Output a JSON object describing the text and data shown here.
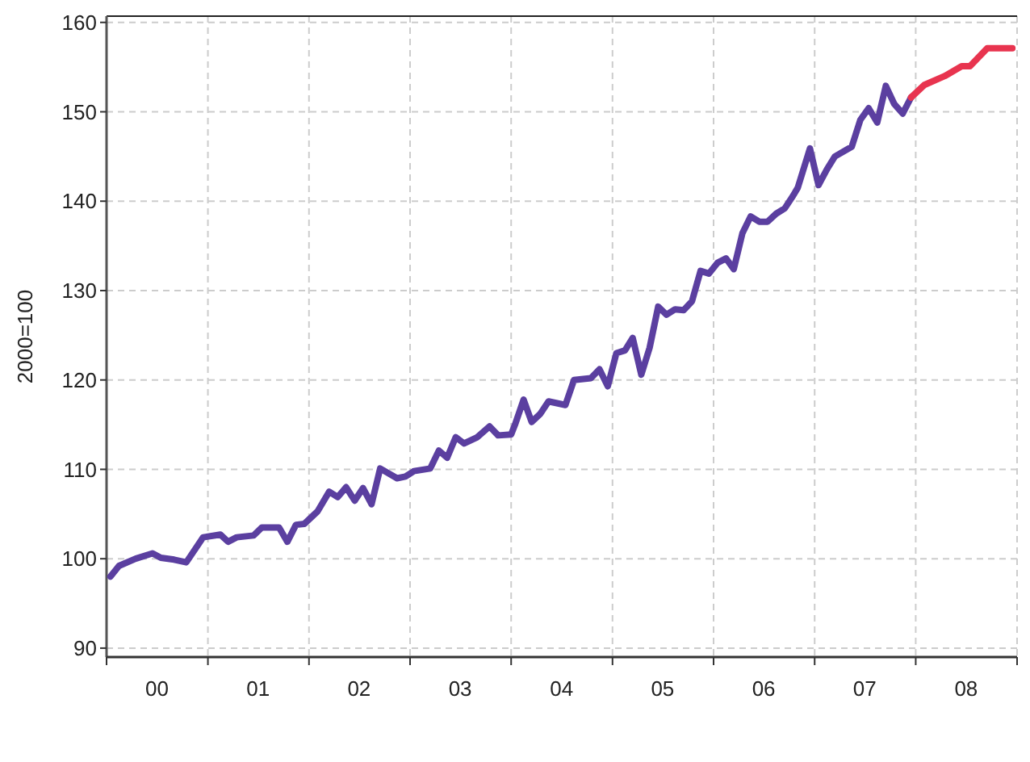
{
  "chart_data": {
    "type": "line",
    "ylabel": "2000=100",
    "xlim": [
      "2000-01-01",
      "2009-01-01"
    ],
    "ylim": [
      89,
      160.7
    ],
    "xticks": [
      {
        "value": "2000-01-01",
        "label": null
      },
      {
        "value": "2000-07-01",
        "label": "00"
      },
      {
        "value": "2001-01-01",
        "label": null
      },
      {
        "value": "2001-07-01",
        "label": "01"
      },
      {
        "value": "2002-01-01",
        "label": null
      },
      {
        "value": "2002-07-01",
        "label": "02"
      },
      {
        "value": "2003-01-01",
        "label": null
      },
      {
        "value": "2003-07-01",
        "label": "03"
      },
      {
        "value": "2004-01-01",
        "label": null
      },
      {
        "value": "2004-07-01",
        "label": "04"
      },
      {
        "value": "2005-01-01",
        "label": null
      },
      {
        "value": "2005-07-01",
        "label": "05"
      },
      {
        "value": "2006-01-01",
        "label": null
      },
      {
        "value": "2006-07-01",
        "label": "06"
      },
      {
        "value": "2007-01-01",
        "label": null
      },
      {
        "value": "2007-07-01",
        "label": "07"
      },
      {
        "value": "2008-01-01",
        "label": null
      },
      {
        "value": "2008-07-01",
        "label": "08"
      },
      {
        "value": "2009-01-01",
        "label": null
      }
    ],
    "yticks": [
      90,
      100,
      110,
      120,
      130,
      140,
      150,
      160
    ],
    "grid": true,
    "line_style": "solid",
    "marker": "none",
    "series": [
      {
        "color": "#5b3fa0",
        "x": [
          "2000-01-15",
          "2000-02-15",
          "2000-04-15",
          "2000-06-15",
          "2000-07-15",
          "2000-09-01",
          "2000-10-15",
          "2000-12-15",
          "2001-02-15",
          "2001-03-15",
          "2001-04-15",
          "2001-06-15",
          "2001-07-15",
          "2001-09-15",
          "2001-10-15",
          "2001-11-15",
          "2001-12-15",
          "2002-02-01",
          "2002-03-15",
          "2002-04-15",
          "2002-05-15",
          "2002-06-15",
          "2002-07-15",
          "2002-08-15",
          "2002-09-15",
          "2002-11-15",
          "2002-12-15",
          "2003-01-15",
          "2003-03-15",
          "2003-04-15",
          "2003-05-15",
          "2003-06-15",
          "2003-07-15",
          "2003-09-01",
          "2003-10-15",
          "2003-11-15",
          "2004-01-01",
          "2004-01-15",
          "2004-02-15",
          "2004-03-15",
          "2004-04-15",
          "2004-05-15",
          "2004-07-15",
          "2004-08-15",
          "2004-10-15",
          "2004-11-15",
          "2004-12-15",
          "2005-01-15",
          "2005-02-15",
          "2005-03-15",
          "2005-04-15",
          "2005-05-15",
          "2005-06-15",
          "2005-07-15",
          "2005-08-15",
          "2005-09-15",
          "2005-10-15",
          "2005-11-15",
          "2005-12-15",
          "2006-01-15",
          "2006-02-15",
          "2006-03-15",
          "2006-04-15",
          "2006-05-15",
          "2006-06-15",
          "2006-07-15",
          "2006-08-15",
          "2006-09-15",
          "2006-10-15",
          "2006-11-01",
          "2006-12-15",
          "2007-01-15",
          "2007-02-15",
          "2007-03-15",
          "2007-05-15",
          "2007-06-15",
          "2007-07-15",
          "2007-08-15",
          "2007-09-15",
          "2007-10-15",
          "2007-11-15",
          "2007-12-15"
        ],
        "values": [
          98.0,
          99.2,
          100.0,
          100.6,
          100.1,
          99.9,
          99.6,
          102.4,
          102.7,
          101.9,
          102.4,
          102.6,
          103.5,
          103.5,
          101.9,
          103.8,
          103.9,
          105.3,
          107.5,
          106.9,
          108.0,
          106.5,
          107.9,
          106.1,
          110.1,
          109.0,
          109.2,
          109.8,
          110.1,
          112.1,
          111.3,
          113.6,
          112.9,
          113.6,
          114.8,
          113.8,
          113.9,
          115.0,
          117.8,
          115.3,
          116.2,
          117.6,
          117.2,
          120.0,
          120.2,
          121.2,
          119.3,
          123.0,
          123.3,
          124.7,
          120.6,
          123.6,
          128.2,
          127.3,
          127.9,
          127.8,
          128.8,
          132.2,
          131.9,
          133.1,
          133.6,
          132.4,
          136.4,
          138.3,
          137.7,
          137.7,
          138.6,
          139.2,
          140.6,
          141.5,
          145.9,
          141.8,
          143.6,
          145.0,
          146.1,
          149.1,
          150.4,
          148.8,
          152.9,
          150.9,
          149.8,
          151.6
        ]
      },
      {
        "color": "#e8344f",
        "x": [
          "2007-12-15",
          "2008-02-01",
          "2008-04-15",
          "2008-06-15",
          "2008-07-15",
          "2008-09-15",
          "2008-12-15"
        ],
        "values": [
          151.6,
          153.0,
          154.0,
          155.1,
          155.1,
          157.1,
          157.1
        ]
      }
    ]
  }
}
